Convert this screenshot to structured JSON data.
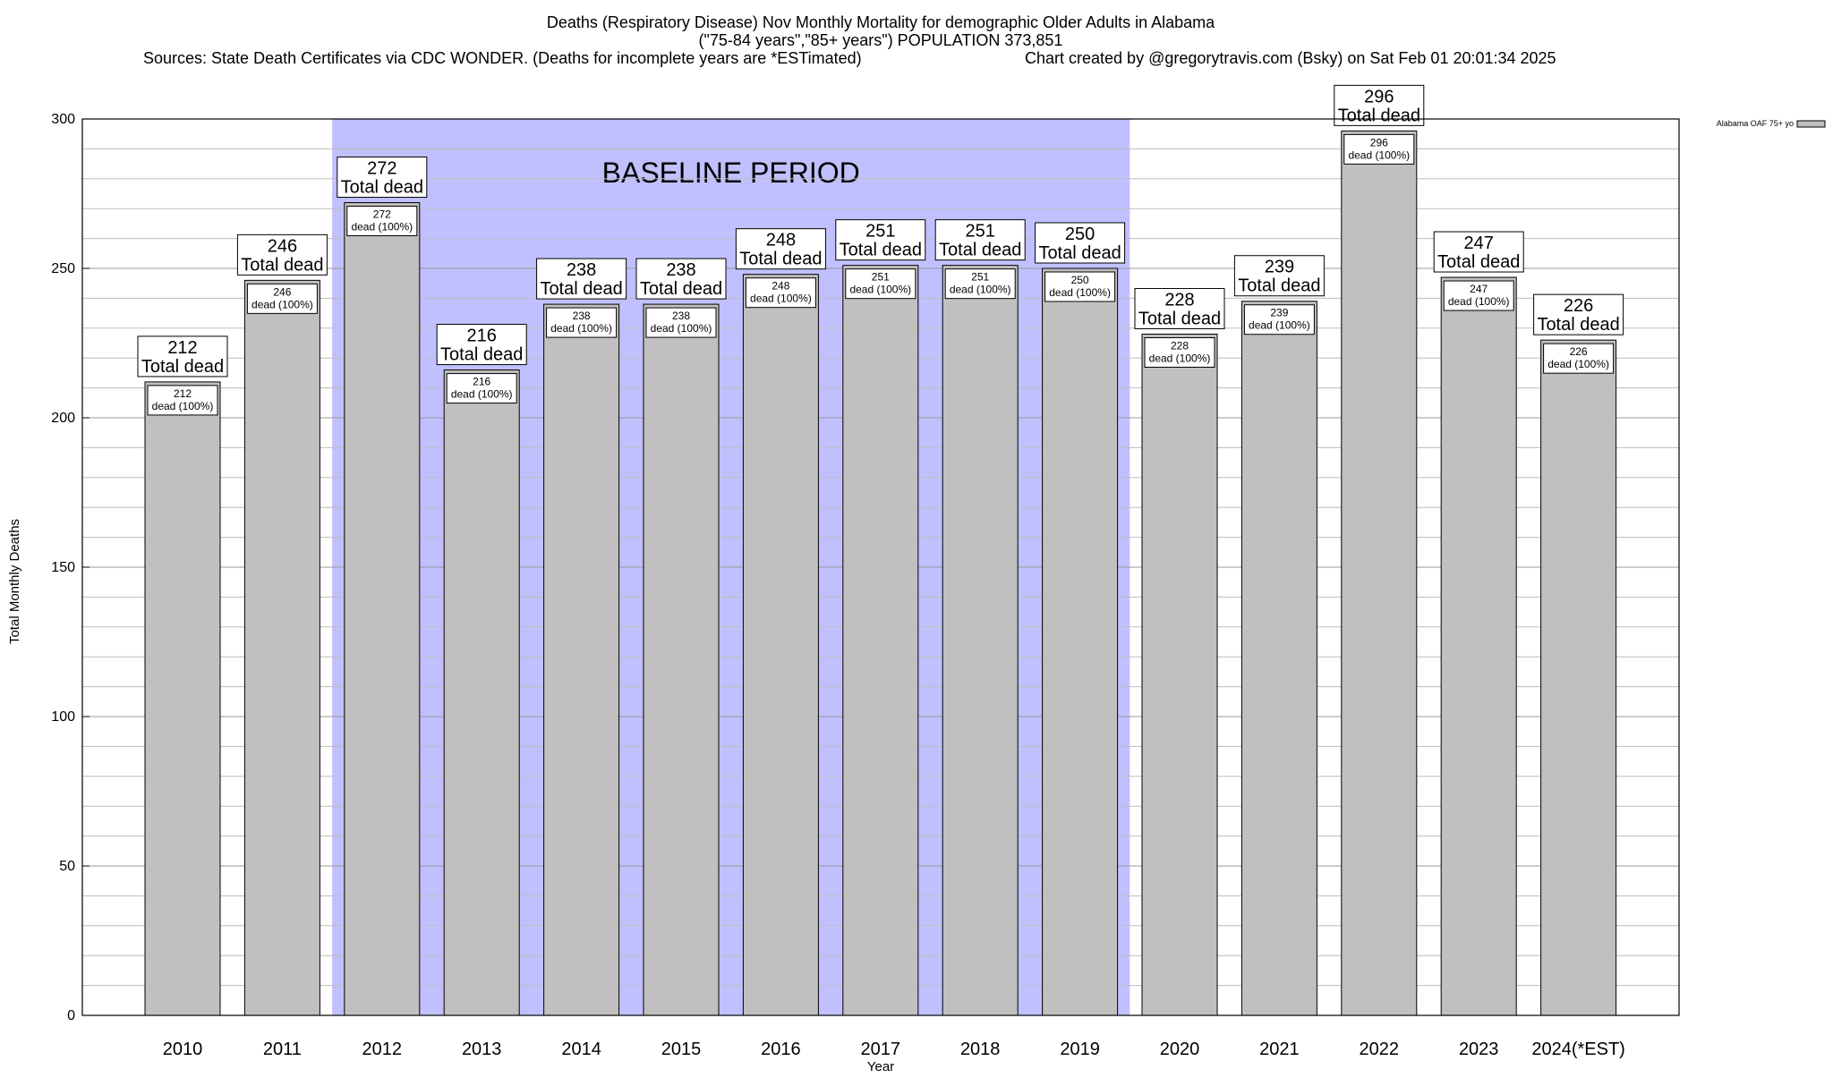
{
  "chart_data": {
    "type": "bar",
    "title_lines": [
      "Deaths (Respiratory Disease) Nov Monthly Mortality for demographic Older Adults in Alabama",
      "(\"75-84 years\",\"85+ years\") POPULATION 373,851"
    ],
    "sources": "Sources: State Death Certificates via CDC WONDER. (Deaths for incomplete years are *ESTimated)",
    "credit": "Chart created by @gregorytravis.com (Bsky) on Sat Feb 01 20:01:34 2025",
    "xlabel": "Year",
    "ylabel": "Total Monthly Deaths",
    "ylim": [
      0,
      300
    ],
    "y_ticks": [
      0,
      50,
      100,
      150,
      200,
      250,
      300
    ],
    "y_minor_step": 10,
    "grid": true,
    "categories": [
      "2010",
      "2011",
      "2012",
      "2013",
      "2014",
      "2015",
      "2016",
      "2017",
      "2018",
      "2019",
      "2020",
      "2021",
      "2022",
      "2023",
      "2024(*EST)"
    ],
    "series": [
      {
        "name": "Alabama OAF 75+ yo",
        "color": "#c0c0c0",
        "values": [
          212,
          246,
          272,
          216,
          238,
          238,
          248,
          251,
          251,
          250,
          228,
          239,
          296,
          247,
          226
        ]
      }
    ],
    "total_label": "Total dead",
    "inner_label": "dead (100%)",
    "baseline": {
      "label": "BASELINE PERIOD",
      "from": "2012",
      "to": "2019",
      "color": "#c0c0ff"
    },
    "legend_position": "top-right"
  }
}
